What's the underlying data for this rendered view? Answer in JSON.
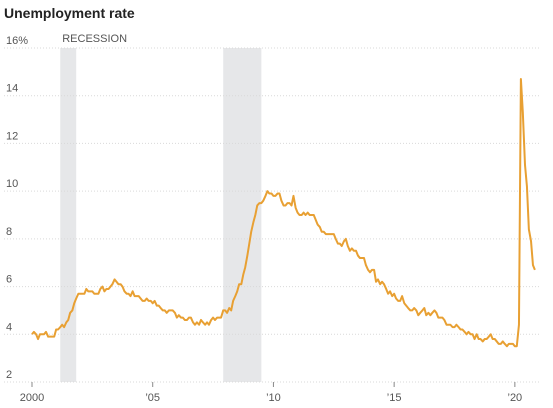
{
  "chart_data": {
    "type": "line",
    "title": "Unemployment rate",
    "annotation": "RECESSION",
    "recessions": [
      [
        2001.17,
        2001.83
      ],
      [
        2007.92,
        2009.5
      ]
    ],
    "xlim": [
      2000,
      2021
    ],
    "xticks": [
      2000,
      {
        "value": 2005,
        "label": "’05"
      },
      {
        "value": 2010,
        "label": "’10"
      },
      {
        "value": 2015,
        "label": "’15"
      },
      {
        "value": 2020,
        "label": "’20"
      }
    ],
    "ylim": [
      2,
      16
    ],
    "yticks": [
      2,
      4,
      6,
      8,
      10,
      12,
      14,
      {
        "value": 16,
        "label": "16%"
      }
    ],
    "grid": true,
    "x": [
      2000,
      2000.08,
      2000.17,
      2000.25,
      2000.33,
      2000.42,
      2000.5,
      2000.58,
      2000.67,
      2000.75,
      2000.83,
      2000.92,
      2001,
      2001.08,
      2001.17,
      2001.25,
      2001.33,
      2001.42,
      2001.5,
      2001.58,
      2001.67,
      2001.75,
      2001.83,
      2001.92,
      2002,
      2002.08,
      2002.17,
      2002.25,
      2002.33,
      2002.42,
      2002.5,
      2002.58,
      2002.67,
      2002.75,
      2002.83,
      2002.92,
      2003,
      2003.08,
      2003.17,
      2003.25,
      2003.33,
      2003.42,
      2003.5,
      2003.58,
      2003.67,
      2003.75,
      2003.83,
      2003.92,
      2004,
      2004.08,
      2004.17,
      2004.25,
      2004.33,
      2004.42,
      2004.5,
      2004.58,
      2004.67,
      2004.75,
      2004.83,
      2004.92,
      2005,
      2005.08,
      2005.17,
      2005.25,
      2005.33,
      2005.42,
      2005.5,
      2005.58,
      2005.67,
      2005.75,
      2005.83,
      2005.92,
      2006,
      2006.08,
      2006.17,
      2006.25,
      2006.33,
      2006.42,
      2006.5,
      2006.58,
      2006.67,
      2006.75,
      2006.83,
      2006.92,
      2007,
      2007.08,
      2007.17,
      2007.25,
      2007.33,
      2007.42,
      2007.5,
      2007.58,
      2007.67,
      2007.75,
      2007.83,
      2007.92,
      2008,
      2008.08,
      2008.17,
      2008.25,
      2008.33,
      2008.42,
      2008.5,
      2008.58,
      2008.67,
      2008.75,
      2008.83,
      2008.92,
      2009,
      2009.08,
      2009.17,
      2009.25,
      2009.33,
      2009.42,
      2009.5,
      2009.58,
      2009.67,
      2009.75,
      2009.83,
      2009.92,
      2010,
      2010.08,
      2010.17,
      2010.25,
      2010.33,
      2010.42,
      2010.5,
      2010.58,
      2010.67,
      2010.75,
      2010.83,
      2010.92,
      2011,
      2011.08,
      2011.17,
      2011.25,
      2011.33,
      2011.42,
      2011.5,
      2011.58,
      2011.67,
      2011.75,
      2011.83,
      2011.92,
      2012,
      2012.08,
      2012.17,
      2012.25,
      2012.33,
      2012.42,
      2012.5,
      2012.58,
      2012.67,
      2012.75,
      2012.83,
      2012.92,
      2013,
      2013.08,
      2013.17,
      2013.25,
      2013.33,
      2013.42,
      2013.5,
      2013.58,
      2013.67,
      2013.75,
      2013.83,
      2013.92,
      2014,
      2014.08,
      2014.17,
      2014.25,
      2014.33,
      2014.42,
      2014.5,
      2014.58,
      2014.67,
      2014.75,
      2014.83,
      2014.92,
      2015,
      2015.08,
      2015.17,
      2015.25,
      2015.33,
      2015.42,
      2015.5,
      2015.58,
      2015.67,
      2015.75,
      2015.83,
      2015.92,
      2016,
      2016.08,
      2016.17,
      2016.25,
      2016.33,
      2016.42,
      2016.5,
      2016.58,
      2016.67,
      2016.75,
      2016.83,
      2016.92,
      2017,
      2017.08,
      2017.17,
      2017.25,
      2017.33,
      2017.42,
      2017.5,
      2017.58,
      2017.67,
      2017.75,
      2017.83,
      2017.92,
      2018,
      2018.08,
      2018.17,
      2018.25,
      2018.33,
      2018.42,
      2018.5,
      2018.58,
      2018.67,
      2018.75,
      2018.83,
      2018.92,
      2019,
      2019.08,
      2019.17,
      2019.25,
      2019.33,
      2019.42,
      2019.5,
      2019.58,
      2019.67,
      2019.75,
      2019.83,
      2019.92,
      2020,
      2020.08,
      2020.17,
      2020.25,
      2020.33,
      2020.42,
      2020.5,
      2020.58,
      2020.67,
      2020.75,
      2020.83
    ],
    "series": [
      {
        "color": "#e8a033",
        "values": [
          4.0,
          4.1,
          4.0,
          3.8,
          4.0,
          4.0,
          4.0,
          4.1,
          3.9,
          3.9,
          3.9,
          3.9,
          4.2,
          4.2,
          4.3,
          4.4,
          4.3,
          4.5,
          4.6,
          4.9,
          5.0,
          5.3,
          5.5,
          5.7,
          5.7,
          5.7,
          5.7,
          5.9,
          5.8,
          5.8,
          5.8,
          5.7,
          5.7,
          5.7,
          5.9,
          6.0,
          5.8,
          5.9,
          5.9,
          6.0,
          6.1,
          6.3,
          6.2,
          6.1,
          6.1,
          6.0,
          5.8,
          5.7,
          5.7,
          5.6,
          5.8,
          5.6,
          5.6,
          5.6,
          5.5,
          5.4,
          5.4,
          5.5,
          5.4,
          5.4,
          5.3,
          5.4,
          5.2,
          5.2,
          5.1,
          5.0,
          5.0,
          4.9,
          5.0,
          5.0,
          5.0,
          4.9,
          4.7,
          4.8,
          4.7,
          4.7,
          4.6,
          4.6,
          4.7,
          4.7,
          4.5,
          4.4,
          4.5,
          4.4,
          4.6,
          4.5,
          4.4,
          4.5,
          4.4,
          4.6,
          4.7,
          4.6,
          4.7,
          4.7,
          4.7,
          5.0,
          5.0,
          4.9,
          5.1,
          5.0,
          5.4,
          5.6,
          5.8,
          6.1,
          6.1,
          6.5,
          6.8,
          7.3,
          7.8,
          8.3,
          8.7,
          9.0,
          9.4,
          9.5,
          9.5,
          9.6,
          9.8,
          10.0,
          9.9,
          9.9,
          9.8,
          9.8,
          9.9,
          9.9,
          9.6,
          9.4,
          9.4,
          9.5,
          9.5,
          9.4,
          9.8,
          9.3,
          9.1,
          9.0,
          9.0,
          9.1,
          9.0,
          9.1,
          9.0,
          9.0,
          9.0,
          8.8,
          8.6,
          8.5,
          8.3,
          8.3,
          8.2,
          8.2,
          8.2,
          8.2,
          8.2,
          8.0,
          7.8,
          7.8,
          7.7,
          7.9,
          8.0,
          7.7,
          7.5,
          7.6,
          7.5,
          7.5,
          7.3,
          7.2,
          7.2,
          7.2,
          6.9,
          6.7,
          6.6,
          6.7,
          6.7,
          6.2,
          6.3,
          6.1,
          6.2,
          6.1,
          5.9,
          5.7,
          5.8,
          5.6,
          5.7,
          5.5,
          5.4,
          5.4,
          5.6,
          5.3,
          5.2,
          5.1,
          5.0,
          5.0,
          5.1,
          5.0,
          4.8,
          4.9,
          5.0,
          5.1,
          4.8,
          4.9,
          4.8,
          4.9,
          5.0,
          4.9,
          4.7,
          4.7,
          4.7,
          4.6,
          4.4,
          4.4,
          4.4,
          4.3,
          4.3,
          4.4,
          4.3,
          4.2,
          4.2,
          4.1,
          4.0,
          4.1,
          4.0,
          4.0,
          3.8,
          4.0,
          3.8,
          3.8,
          3.7,
          3.8,
          3.8,
          3.9,
          4.0,
          3.8,
          3.8,
          3.7,
          3.6,
          3.6,
          3.7,
          3.6,
          3.5,
          3.6,
          3.6,
          3.6,
          3.5,
          3.5,
          4.4,
          14.7,
          13.3,
          11.1,
          10.2,
          8.4,
          7.9,
          6.9,
          6.7
        ]
      }
    ]
  }
}
